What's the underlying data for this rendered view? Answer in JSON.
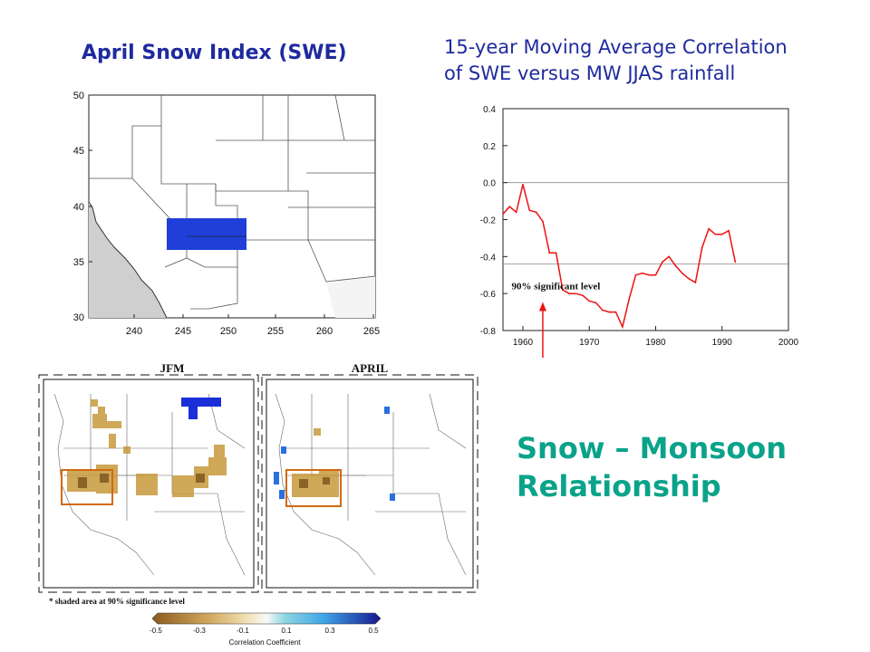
{
  "slide": {
    "title_left": "April Snow Index (SWE)",
    "title_right_line1": "15-year Moving Average Correlation",
    "title_right_line2": "of SWE versus MW JJAS rainfall",
    "big_line1": "Snow – Monsoon",
    "big_line2": "Relationship"
  },
  "map1": {
    "y_ticks": [
      "50",
      "45",
      "40",
      "35",
      "30"
    ],
    "x_ticks": [
      "240",
      "245",
      "250",
      "255",
      "260",
      "265"
    ],
    "box_color": "#1f3fd8"
  },
  "maps2": {
    "left_title": "JFM",
    "right_title": "APRIL",
    "footnote": "* shaded area at 90% significance level",
    "colorbar_ticks": [
      "-0.5",
      "-0.3",
      "-0.1",
      "0.1",
      "0.3",
      "0.5"
    ],
    "colorbar_label": "Correlation Coefficient"
  },
  "chart_data": {
    "type": "line",
    "title": "15-year Moving Average Correlation of SWE versus MW JJAS rainfall",
    "xlim": [
      1957,
      2000
    ],
    "ylim": [
      -0.8,
      0.4
    ],
    "x_ticks": [
      1960,
      1970,
      1980,
      1990,
      2000
    ],
    "y_ticks": [
      0.4,
      0.2,
      0.0,
      -0.2,
      -0.4,
      -0.6,
      -0.8
    ],
    "reference_lines": [
      {
        "y": 0.0,
        "label": ""
      },
      {
        "y": -0.44,
        "label": "90% significant level"
      }
    ],
    "annotation_arrow_year": 1963,
    "line_color": "#ee1111",
    "series": [
      {
        "name": "Correlation",
        "x": [
          1957,
          1958,
          1959,
          1960,
          1961,
          1962,
          1963,
          1964,
          1965,
          1966,
          1967,
          1968,
          1969,
          1970,
          1971,
          1972,
          1973,
          1974,
          1975,
          1976,
          1977,
          1978,
          1979,
          1980,
          1981,
          1982,
          1983,
          1984,
          1985,
          1986,
          1987,
          1988,
          1989,
          1990,
          1991,
          1992
        ],
        "y": [
          -0.17,
          -0.13,
          -0.16,
          -0.01,
          -0.15,
          -0.16,
          -0.21,
          -0.38,
          -0.38,
          -0.58,
          -0.6,
          -0.6,
          -0.61,
          -0.64,
          -0.65,
          -0.69,
          -0.7,
          -0.7,
          -0.78,
          -0.63,
          -0.5,
          -0.49,
          -0.5,
          -0.5,
          -0.43,
          -0.4,
          -0.45,
          -0.49,
          -0.52,
          -0.54,
          -0.35,
          -0.25,
          -0.28,
          -0.28,
          -0.26,
          -0.43
        ]
      }
    ]
  }
}
